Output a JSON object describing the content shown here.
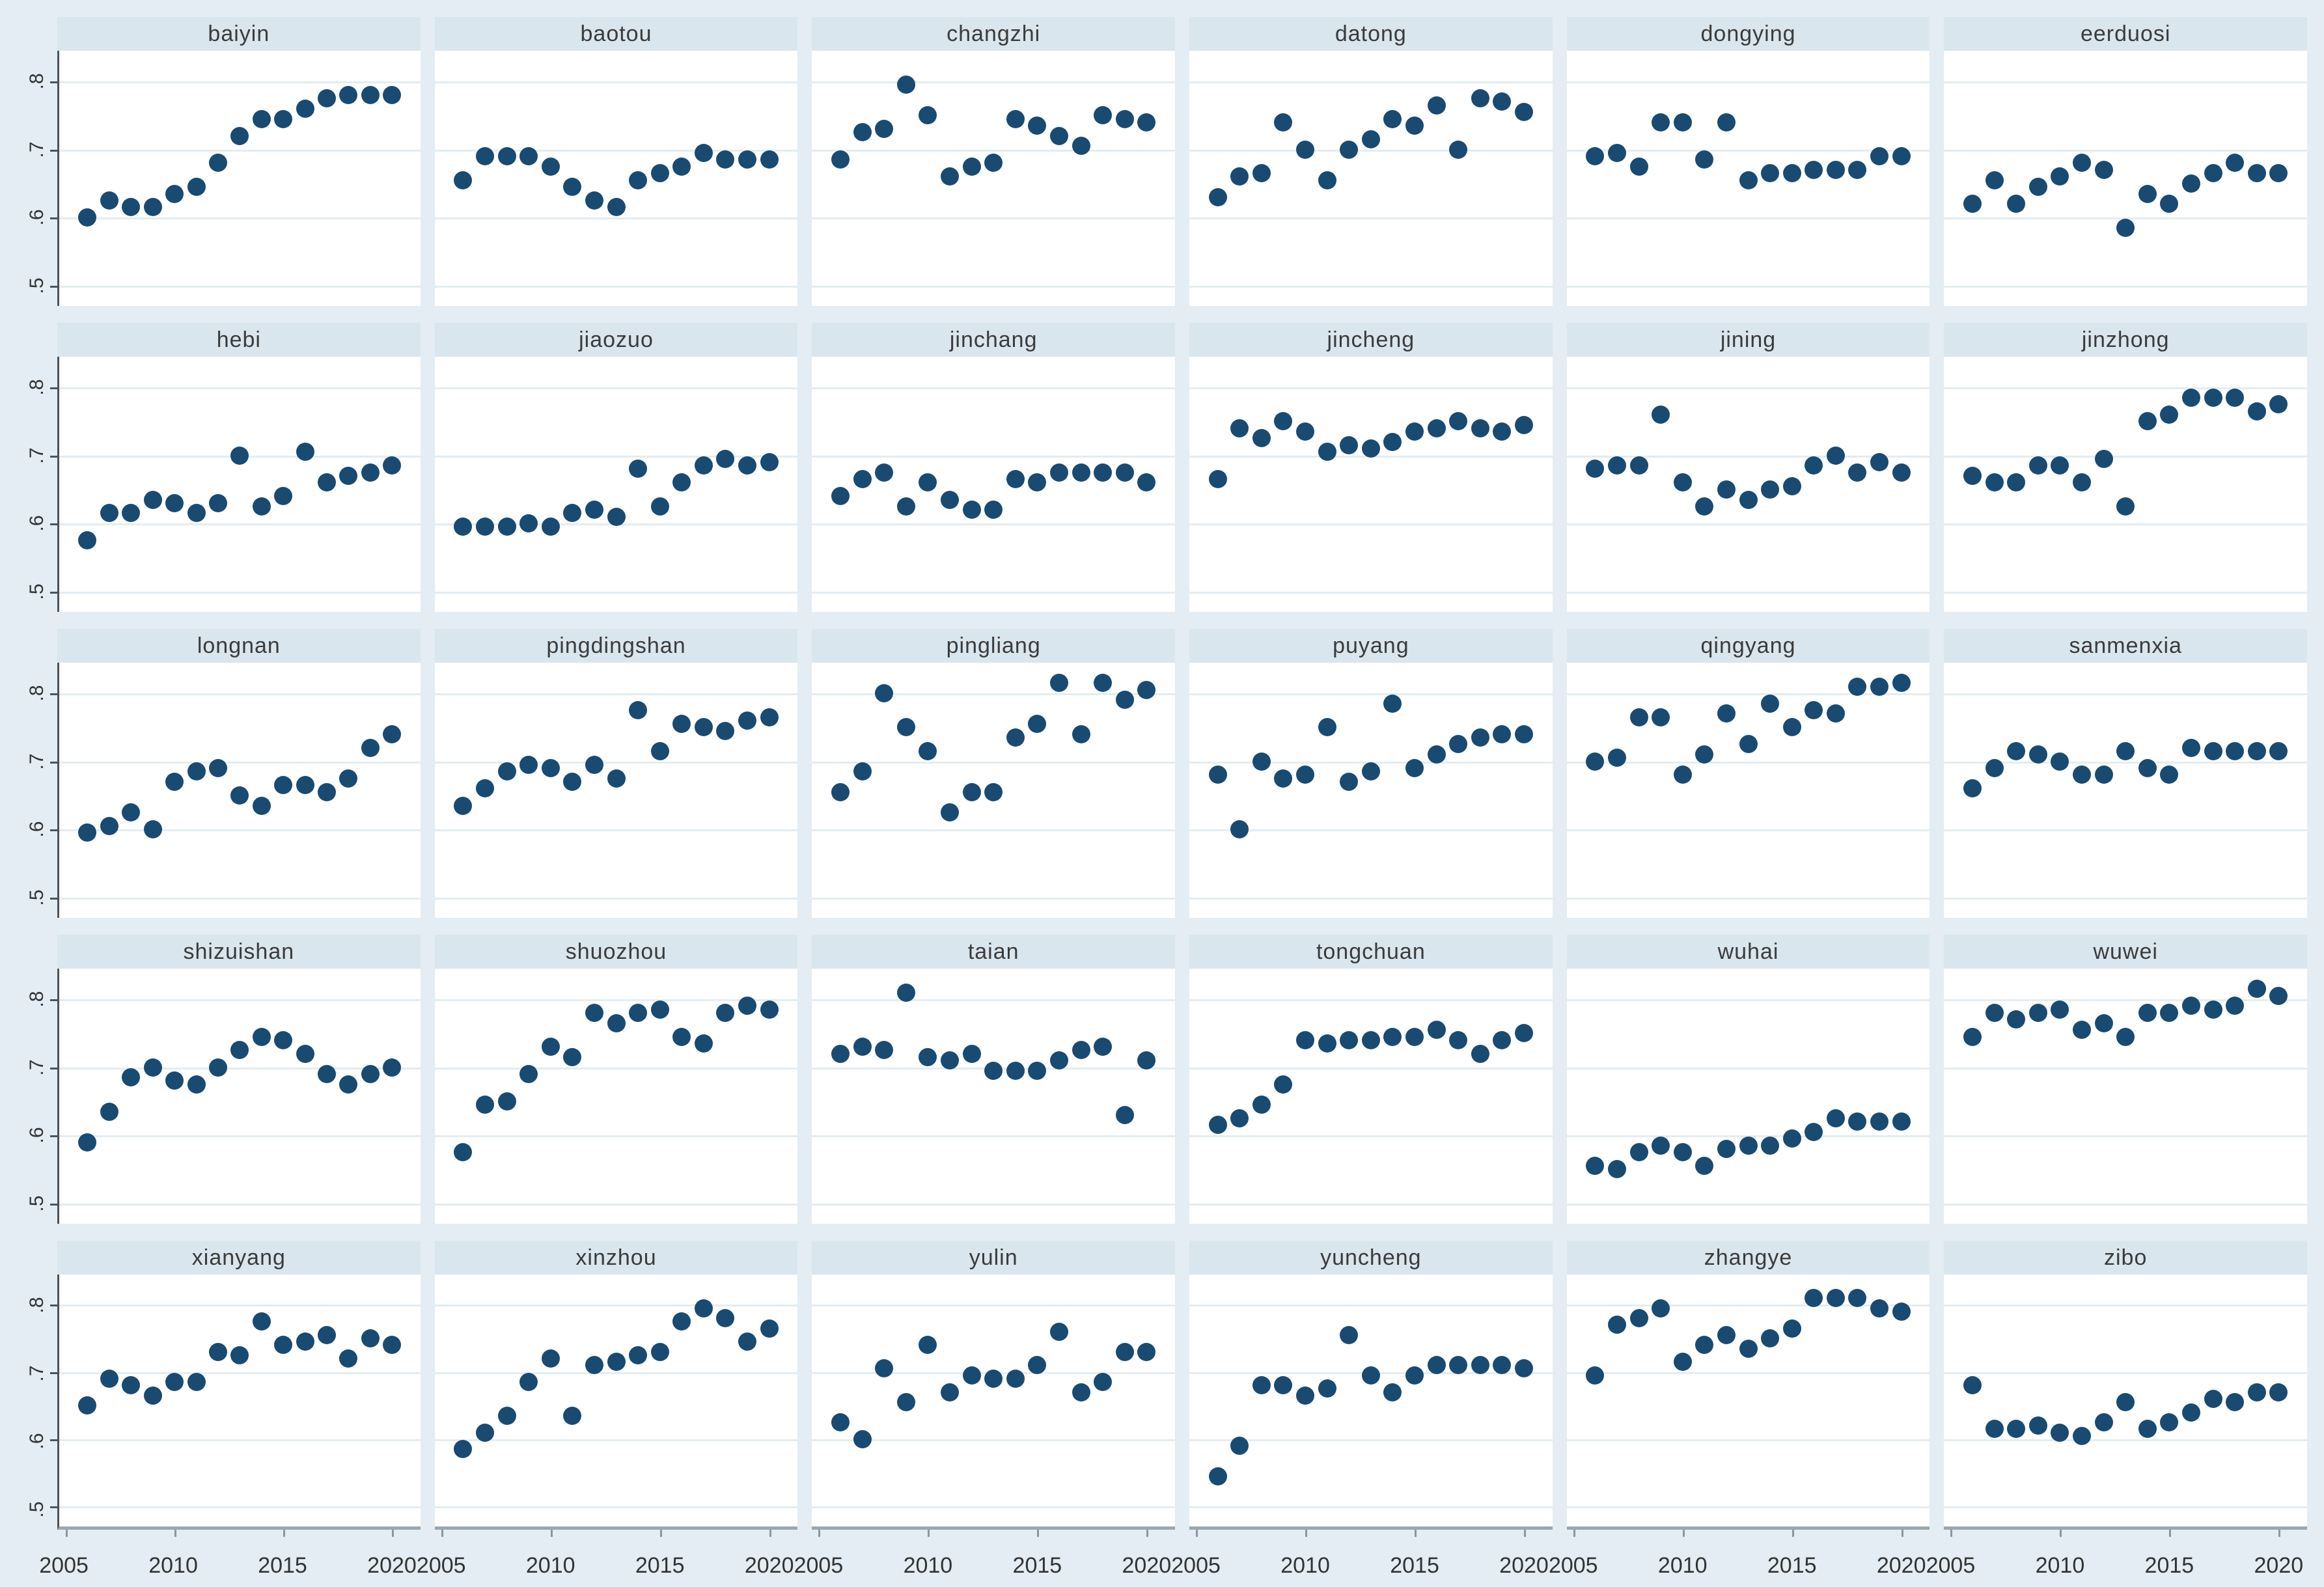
{
  "figure": {
    "background": "#e3edf3",
    "panel_header_bg": "#d9e6ee",
    "plot_bg": "#ffffff",
    "gridline_color": "#e3edf2",
    "dot_color": "#194a72",
    "y_axis_color": "#4a545c",
    "x_axis_color": "#9aa7ae",
    "text_color": "#333333"
  },
  "chart_data": {
    "type": "scatter",
    "layout": "small-multiples-grid",
    "columns": 6,
    "rows": 5,
    "grid": true,
    "x": [
      2006,
      2007,
      2008,
      2009,
      2010,
      2011,
      2012,
      2013,
      2014,
      2015,
      2016,
      2017,
      2018,
      2019,
      2020
    ],
    "xlim": [
      2004.7,
      2021.3
    ],
    "ylim": [
      0.47,
      0.845
    ],
    "x_tick_years": [
      2005,
      2010,
      2015,
      2020
    ],
    "x_tick_labels": [
      "2005",
      "2010",
      "2015",
      "2020"
    ],
    "y_tick_values": [
      0.8,
      0.7,
      0.6,
      0.5
    ],
    "y_tick_labels": [
      ".8",
      ".7",
      ".6",
      ".5"
    ],
    "panels": [
      {
        "title": "baiyin",
        "values": [
          0.6,
          0.625,
          0.615,
          0.615,
          0.635,
          0.645,
          0.68,
          0.72,
          0.745,
          0.745,
          0.76,
          0.775,
          0.78,
          0.78,
          0.78
        ]
      },
      {
        "title": "baotou",
        "values": [
          0.655,
          0.69,
          0.69,
          0.69,
          0.675,
          0.645,
          0.625,
          0.615,
          0.655,
          0.665,
          0.675,
          0.695,
          0.685,
          0.685,
          0.685
        ]
      },
      {
        "title": "changzhi",
        "values": [
          0.685,
          0.725,
          0.73,
          0.795,
          0.75,
          0.66,
          0.675,
          0.68,
          0.745,
          0.735,
          0.72,
          0.705,
          0.75,
          0.745,
          0.74
        ]
      },
      {
        "title": "datong",
        "values": [
          0.63,
          0.66,
          0.665,
          0.74,
          0.7,
          0.655,
          0.7,
          0.715,
          0.745,
          0.735,
          0.765,
          0.7,
          0.775,
          0.77,
          0.755
        ]
      },
      {
        "title": "dongying",
        "values": [
          0.69,
          0.695,
          0.675,
          0.74,
          0.74,
          0.685,
          0.74,
          0.655,
          0.665,
          0.665,
          0.67,
          0.67,
          0.67,
          0.69,
          0.69
        ]
      },
      {
        "title": "eerduosi",
        "values": [
          0.62,
          0.655,
          0.62,
          0.645,
          0.66,
          0.68,
          0.67,
          0.585,
          0.635,
          0.62,
          0.65,
          0.665,
          0.68,
          0.665,
          0.665
        ]
      },
      {
        "title": "hebi",
        "values": [
          0.575,
          0.615,
          0.615,
          0.635,
          0.63,
          0.615,
          0.63,
          0.7,
          0.625,
          0.64,
          0.705,
          0.66,
          0.67,
          0.675,
          0.685
        ]
      },
      {
        "title": "jiaozuo",
        "values": [
          0.595,
          0.595,
          0.595,
          0.6,
          0.595,
          0.615,
          0.62,
          0.61,
          0.68,
          0.625,
          0.66,
          0.685,
          0.695,
          0.685,
          0.69
        ]
      },
      {
        "title": "jinchang",
        "values": [
          0.64,
          0.665,
          0.675,
          0.625,
          0.66,
          0.635,
          0.62,
          0.62,
          0.665,
          0.66,
          0.675,
          0.675,
          0.675,
          0.675,
          0.66
        ]
      },
      {
        "title": "jincheng",
        "values": [
          0.665,
          0.74,
          0.725,
          0.75,
          0.735,
          0.705,
          0.715,
          0.71,
          0.72,
          0.735,
          0.74,
          0.75,
          0.74,
          0.735,
          0.745
        ]
      },
      {
        "title": "jining",
        "values": [
          0.68,
          0.685,
          0.685,
          0.76,
          0.66,
          0.625,
          0.65,
          0.635,
          0.65,
          0.655,
          0.685,
          0.7,
          0.675,
          0.69,
          0.675
        ]
      },
      {
        "title": "jinzhong",
        "values": [
          0.67,
          0.66,
          0.66,
          0.685,
          0.685,
          0.66,
          0.695,
          0.625,
          0.75,
          0.76,
          0.785,
          0.785,
          0.785,
          0.765,
          0.775
        ]
      },
      {
        "title": "longnan",
        "values": [
          0.595,
          0.605,
          0.625,
          0.6,
          0.67,
          0.685,
          0.69,
          0.65,
          0.635,
          0.665,
          0.665,
          0.655,
          0.675,
          0.72,
          0.74
        ]
      },
      {
        "title": "pingdingshan",
        "values": [
          0.635,
          0.66,
          0.685,
          0.695,
          0.69,
          0.67,
          0.695,
          0.675,
          0.775,
          0.715,
          0.755,
          0.75,
          0.745,
          0.76,
          0.765
        ]
      },
      {
        "title": "pingliang",
        "values": [
          0.655,
          0.685,
          0.8,
          0.75,
          0.715,
          0.625,
          0.655,
          0.655,
          0.735,
          0.755,
          0.815,
          0.74,
          0.815,
          0.79,
          0.805
        ]
      },
      {
        "title": "puyang",
        "values": [
          0.68,
          0.6,
          0.7,
          0.675,
          0.68,
          0.75,
          0.67,
          0.685,
          0.785,
          0.69,
          0.71,
          0.725,
          0.735,
          0.74,
          0.74
        ]
      },
      {
        "title": "qingyang",
        "values": [
          0.7,
          0.705,
          0.765,
          0.765,
          0.68,
          0.71,
          0.77,
          0.725,
          0.785,
          0.75,
          0.775,
          0.77,
          0.81,
          0.81,
          0.815
        ]
      },
      {
        "title": "sanmenxia",
        "values": [
          0.66,
          0.69,
          0.715,
          0.71,
          0.7,
          0.68,
          0.68,
          0.715,
          0.69,
          0.68,
          0.72,
          0.715,
          0.715,
          0.715,
          0.715
        ]
      },
      {
        "title": "shizuishan",
        "values": [
          0.59,
          0.635,
          0.685,
          0.7,
          0.68,
          0.675,
          0.7,
          0.725,
          0.745,
          0.74,
          0.72,
          0.69,
          0.675,
          0.69,
          0.7
        ]
      },
      {
        "title": "shuozhou",
        "values": [
          0.575,
          0.645,
          0.65,
          0.69,
          0.73,
          0.715,
          0.78,
          0.765,
          0.78,
          0.785,
          0.745,
          0.735,
          0.78,
          0.79,
          0.785
        ]
      },
      {
        "title": "taian",
        "values": [
          0.72,
          0.73,
          0.725,
          0.81,
          0.715,
          0.71,
          0.72,
          0.695,
          0.695,
          0.695,
          0.71,
          0.725,
          0.73,
          0.63,
          0.71
        ]
      },
      {
        "title": "tongchuan",
        "values": [
          0.615,
          0.625,
          0.645,
          0.675,
          0.74,
          0.735,
          0.74,
          0.74,
          0.745,
          0.745,
          0.755,
          0.74,
          0.72,
          0.74,
          0.75
        ]
      },
      {
        "title": "wuhai",
        "values": [
          0.555,
          0.55,
          0.575,
          0.585,
          0.575,
          0.555,
          0.58,
          0.585,
          0.585,
          0.595,
          0.605,
          0.625,
          0.62,
          0.62,
          0.62
        ]
      },
      {
        "title": "wuwei",
        "values": [
          0.745,
          0.78,
          0.77,
          0.78,
          0.785,
          0.755,
          0.765,
          0.745,
          0.78,
          0.78,
          0.79,
          0.785,
          0.79,
          0.815,
          0.805
        ]
      },
      {
        "title": "xianyang",
        "values": [
          0.65,
          0.69,
          0.68,
          0.665,
          0.685,
          0.685,
          0.73,
          0.725,
          0.775,
          0.74,
          0.745,
          0.755,
          0.72,
          0.75,
          0.74
        ]
      },
      {
        "title": "xinzhou",
        "values": [
          0.585,
          0.61,
          0.635,
          0.685,
          0.72,
          0.635,
          0.71,
          0.715,
          0.725,
          0.73,
          0.775,
          0.795,
          0.78,
          0.745,
          0.765
        ]
      },
      {
        "title": "yulin",
        "values": [
          0.625,
          0.6,
          0.705,
          0.655,
          0.74,
          0.67,
          0.695,
          0.69,
          0.69,
          0.71,
          0.76,
          0.67,
          0.685,
          0.73,
          0.73
        ]
      },
      {
        "title": "yuncheng",
        "values": [
          0.545,
          0.59,
          0.68,
          0.68,
          0.665,
          0.675,
          0.755,
          0.695,
          0.67,
          0.695,
          0.71,
          0.71,
          0.71,
          0.71,
          0.705
        ]
      },
      {
        "title": "zhangye",
        "values": [
          0.695,
          0.77,
          0.78,
          0.795,
          0.715,
          0.74,
          0.755,
          0.735,
          0.75,
          0.765,
          0.81,
          0.81,
          0.81,
          0.795,
          0.79
        ]
      },
      {
        "title": "zibo",
        "values": [
          0.68,
          0.615,
          0.615,
          0.62,
          0.61,
          0.605,
          0.625,
          0.655,
          0.615,
          0.625,
          0.64,
          0.66,
          0.655,
          0.67,
          0.67
        ]
      }
    ]
  }
}
